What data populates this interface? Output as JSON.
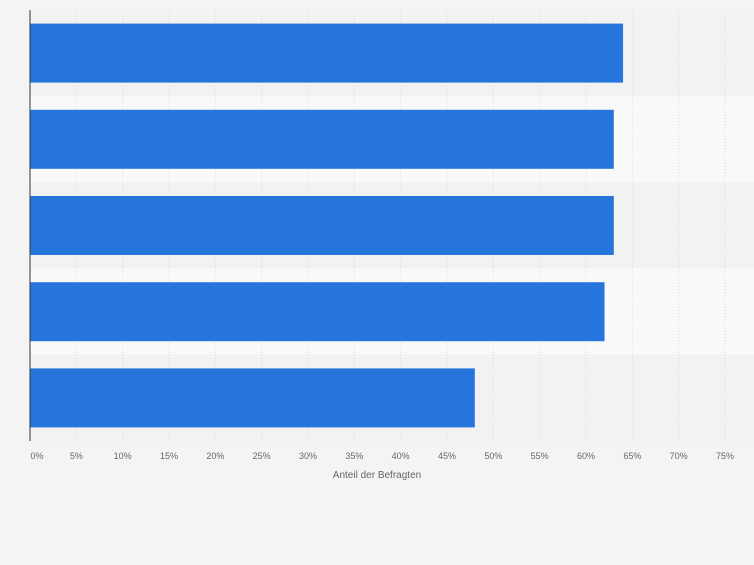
{
  "chart_data": {
    "type": "bar",
    "orientation": "horizontal",
    "categories": [
      "",
      "",
      "",
      "",
      ""
    ],
    "values": [
      64,
      63,
      63,
      62,
      48
    ],
    "title": "",
    "xlabel": "Anteil der Befragten",
    "ylabel": "",
    "xlim": [
      0,
      75
    ],
    "x_ticks": [
      0,
      5,
      10,
      15,
      20,
      25,
      30,
      35,
      40,
      45,
      50,
      55,
      60,
      65,
      70,
      75
    ],
    "x_tick_labels": [
      "0%",
      "5%",
      "10%",
      "15%",
      "20%",
      "25%",
      "30%",
      "35%",
      "40%",
      "45%",
      "50%",
      "55%",
      "60%",
      "65%",
      "70%",
      "75%"
    ],
    "grid": true,
    "legend": "none",
    "colors": {
      "bar": "#2675dc",
      "background": "#f4f4f4",
      "band_light": "#f9f9f9",
      "band_dark": "#f2f2f2",
      "grid": "#dcdcdc",
      "axis": "#333333",
      "tick_text": "#666666"
    }
  }
}
